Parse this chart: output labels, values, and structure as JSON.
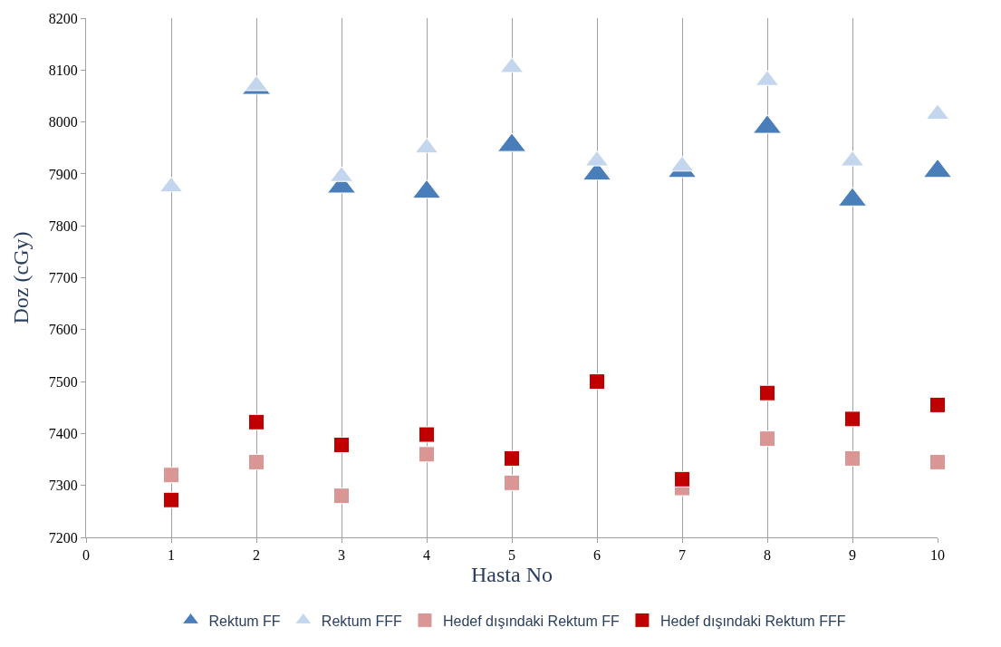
{
  "chart_data": {
    "type": "scatter",
    "xlabel": "Hasta No",
    "ylabel": "Doz (cGy)",
    "x": [
      1,
      2,
      3,
      4,
      5,
      6,
      7,
      8,
      9,
      10
    ],
    "series": [
      {
        "name": "Rektum FF",
        "color": "#4a7ebb",
        "marker": "triangle",
        "values": [
          null,
          8065,
          7875,
          7865,
          7955,
          7900,
          7905,
          7990,
          7850,
          7905
        ]
      },
      {
        "name": "Rektum FFF",
        "color": "#c3d6ee",
        "marker": "triangle",
        "values": [
          7875,
          8070,
          7895,
          7950,
          8105,
          7925,
          7915,
          8080,
          7925,
          8015
        ]
      },
      {
        "name": "Hedef dışındaki Rektum FF",
        "color": "#da9694",
        "marker": "square",
        "values": [
          7320,
          7345,
          7280,
          7360,
          7305,
          null,
          7295,
          7390,
          7352,
          7345
        ]
      },
      {
        "name": "Hedef dışındaki Rektum FFF",
        "color": "#c00000",
        "marker": "square",
        "values": [
          7272,
          7422,
          7378,
          7398,
          7352,
          7500,
          7312,
          7478,
          7428,
          7455
        ]
      }
    ],
    "xlim": [
      0,
      10
    ],
    "xticks": [
      0,
      1,
      2,
      3,
      4,
      5,
      6,
      7,
      8,
      9,
      10
    ],
    "ylim": [
      7200,
      8200
    ],
    "yticks": [
      7200,
      7300,
      7400,
      7500,
      7600,
      7700,
      7800,
      7900,
      8000,
      8100,
      8200
    ],
    "grid": "x",
    "legend": "bottom"
  }
}
